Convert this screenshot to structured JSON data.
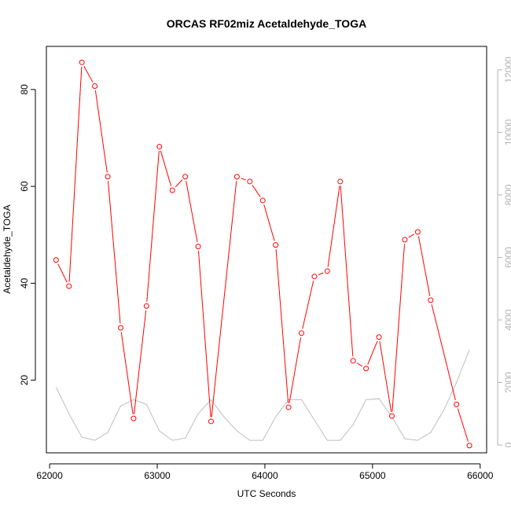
{
  "chart_data": {
    "type": "line",
    "title": "ORCAS RF02miz Acetaldehyde_TOGA",
    "xlabel": "UTC Seconds",
    "ylabel": "Acetaldehyde_TOGA",
    "xlim": [
      61970,
      66060
    ],
    "ylim": [
      5.0,
      88.9
    ],
    "y2lim": [
      -250,
      12750
    ],
    "x_ticks": [
      62000,
      63000,
      64000,
      65000,
      66000
    ],
    "y_ticks": [
      20,
      40,
      60,
      80
    ],
    "y2_ticks": [
      0,
      2000,
      4000,
      6000,
      8000,
      10000,
      12000
    ],
    "colors": {
      "series": "#ff0000",
      "secondary": "#bebebe",
      "axis": "#000000",
      "axis2": "#b3b3b3"
    },
    "series": [
      {
        "axis": "left",
        "style": "line+open-circles",
        "x": [
          62060,
          62180,
          62300,
          62420,
          62540,
          62660,
          62780,
          62900,
          63020,
          63140,
          63260,
          63380,
          63500,
          63740,
          63860,
          63980,
          64100,
          64220,
          64340,
          64460,
          64580,
          64700,
          64820,
          64940,
          65060,
          65180,
          65300,
          65420,
          65540,
          65780,
          65900
        ],
        "values": [
          44.8,
          39.4,
          85.6,
          80.7,
          62.0,
          30.8,
          12.1,
          35.3,
          68.2,
          59.2,
          62.0,
          47.6,
          11.5,
          62.0,
          61.0,
          57.1,
          47.9,
          14.4,
          29.7,
          41.4,
          42.5,
          61.0,
          24.0,
          22.4,
          28.9,
          12.6,
          49.0,
          50.6,
          36.5,
          15.0,
          6.5
        ]
      },
      {
        "axis": "right",
        "style": "line",
        "x": [
          62060,
          62180,
          62300,
          62420,
          62540,
          62660,
          62780,
          62900,
          63020,
          63140,
          63260,
          63380,
          63500,
          63620,
          63740,
          63860,
          63980,
          64100,
          64220,
          64340,
          64460,
          64580,
          64700,
          64820,
          64940,
          65060,
          65180,
          65300,
          65420,
          65540,
          65660,
          65780,
          65900
        ],
        "values": [
          1850,
          1000,
          250,
          150,
          400,
          1250,
          1450,
          1300,
          450,
          150,
          220,
          1000,
          1450,
          900,
          450,
          150,
          150,
          900,
          1450,
          1450,
          800,
          150,
          150,
          650,
          1450,
          1480,
          900,
          200,
          150,
          400,
          1100,
          2000,
          3050
        ]
      }
    ]
  }
}
